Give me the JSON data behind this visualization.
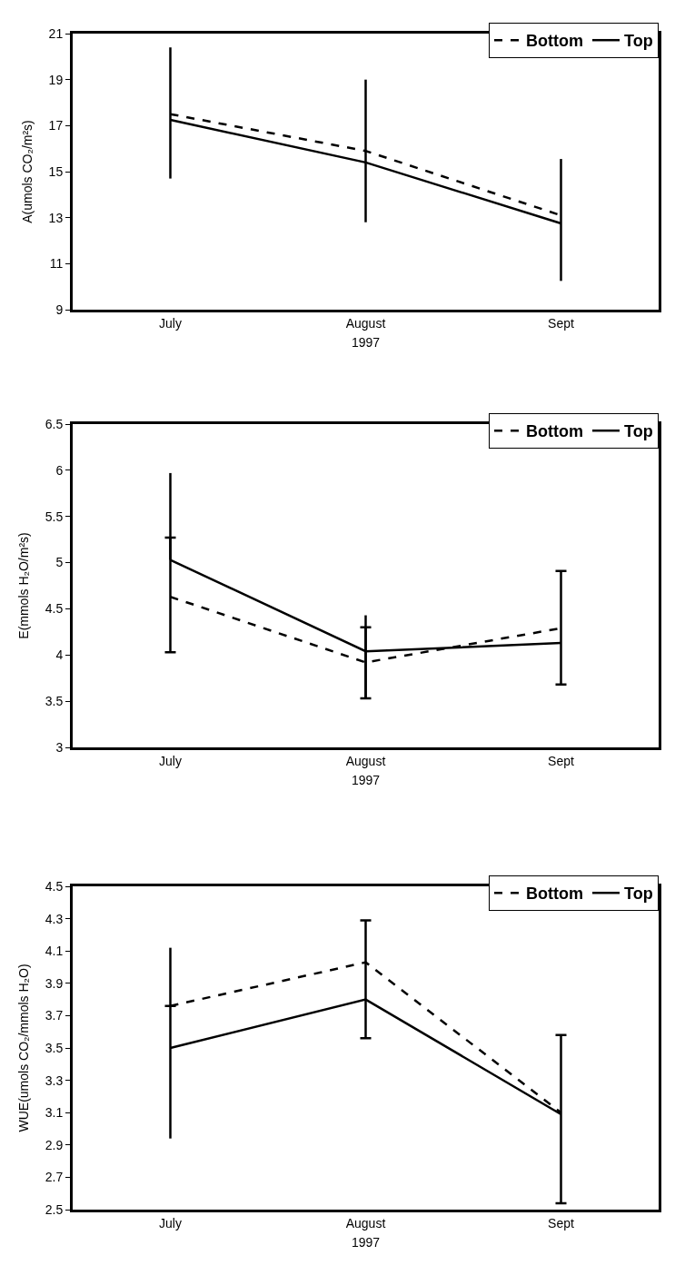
{
  "chart_data": [
    {
      "type": "line",
      "categories": [
        "July",
        "August",
        "Sept"
      ],
      "xlabel": "1997",
      "ylabel": "A(umols CO₂/m²s)",
      "ylim": [
        9,
        21
      ],
      "yticks": [
        9,
        11,
        13,
        15,
        17,
        19,
        21
      ],
      "grid": false,
      "legend": "top right",
      "marker": "none",
      "series": [
        {
          "name": "Bottom",
          "color": "#000000",
          "line_style": "dashed",
          "values": [
            17.5,
            15.9,
            13.1
          ],
          "errors": [
            [
              14.7,
              20.4
            ],
            [
              12.8,
              19.0
            ],
            null
          ]
        },
        {
          "name": "Top",
          "color": "#000000",
          "line_style": "solid",
          "values": [
            17.25,
            15.4,
            12.75
          ],
          "errors": [
            null,
            null,
            [
              10.25,
              15.55
            ]
          ]
        }
      ]
    },
    {
      "type": "line",
      "categories": [
        "July",
        "August",
        "Sept"
      ],
      "xlabel": "1997",
      "ylabel": "E(mmols H₂O/m²s)",
      "ylim": [
        3,
        6.5
      ],
      "yticks": [
        3,
        3.5,
        4,
        4.5,
        5,
        5.5,
        6,
        6.5
      ],
      "grid": false,
      "legend": "top right",
      "marker": "none",
      "series": [
        {
          "name": "Bottom",
          "color": "#000000",
          "line_style": "dashed",
          "values": [
            4.63,
            3.92,
            4.29
          ],
          "errors": [
            [
              4.03,
              5.27
            ],
            [
              3.53,
              4.3
            ],
            [
              3.68,
              4.91
            ]
          ]
        },
        {
          "name": "Top",
          "color": "#000000",
          "line_style": "solid",
          "values": [
            5.03,
            4.04,
            4.13
          ],
          "errors": [
            [
              5.03,
              5.97
            ],
            [
              3.53,
              4.43
            ],
            null
          ]
        }
      ]
    },
    {
      "type": "line",
      "categories": [
        "July",
        "August",
        "Sept"
      ],
      "xlabel": "1997",
      "ylabel": "WUE(umols CO₂/mmols H₂O)",
      "ylim": [
        2.5,
        4.5
      ],
      "yticks": [
        2.5,
        2.7,
        2.9,
        3.1,
        3.3,
        3.5,
        3.7,
        3.9,
        4.1,
        4.3,
        4.5
      ],
      "grid": false,
      "legend": "top right",
      "marker": "none",
      "series": [
        {
          "name": "Bottom",
          "color": "#000000",
          "line_style": "dashed",
          "values": [
            3.76,
            4.03,
            3.1
          ],
          "errors": [
            null,
            [
              3.56,
              4.29
            ],
            [
              2.54,
              3.58
            ]
          ]
        },
        {
          "name": "Top",
          "color": "#000000",
          "line_style": "solid",
          "values": [
            3.5,
            3.8,
            3.09
          ],
          "errors": [
            [
              2.94,
              4.12
            ],
            null,
            null
          ]
        }
      ]
    }
  ]
}
